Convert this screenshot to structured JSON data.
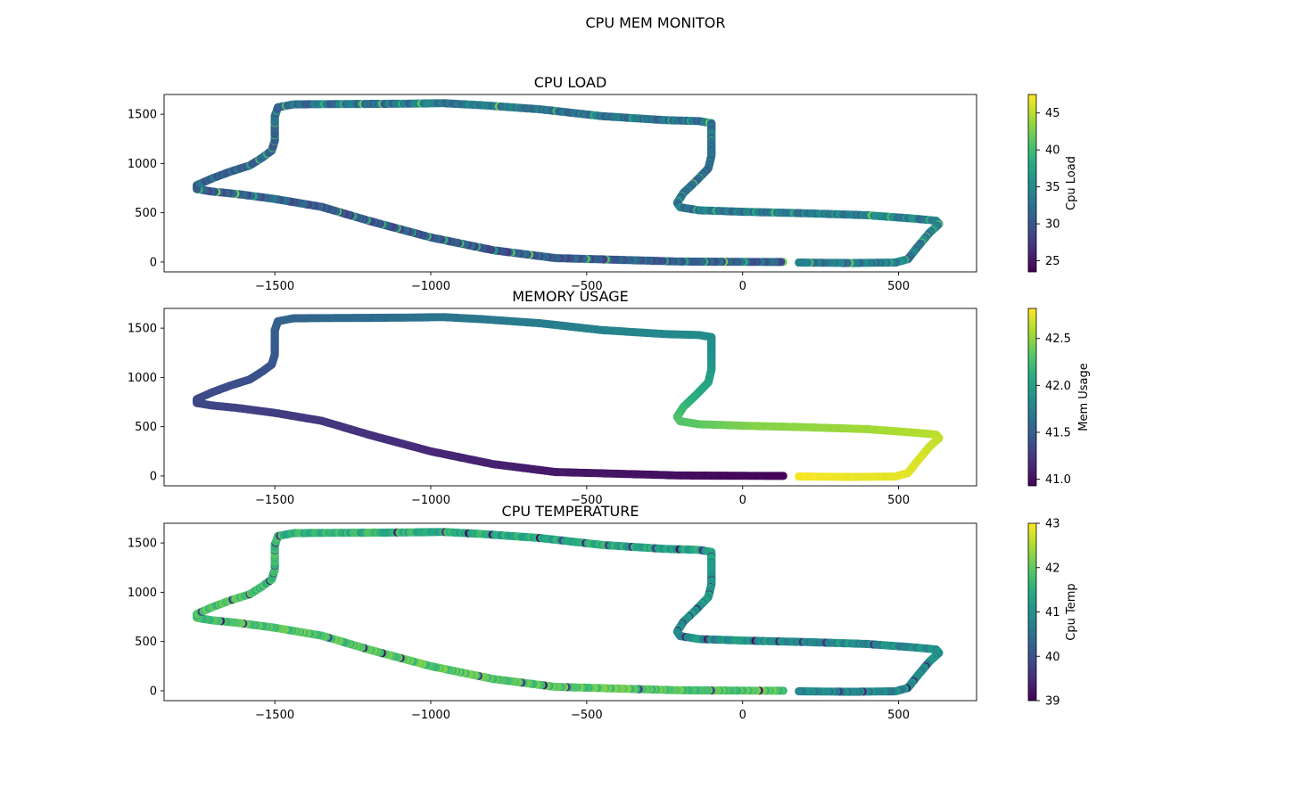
{
  "figure": {
    "suptitle": "CPU MEM MONITOR"
  },
  "colormap": "viridis",
  "chart_data": [
    {
      "type": "scatter",
      "title": "CPU LOAD",
      "xlabel": "",
      "ylabel": "",
      "xlim": [
        -1855,
        750
      ],
      "ylim": [
        -100,
        1700
      ],
      "xticks": [
        -1500,
        -1000,
        -500,
        0,
        500
      ],
      "xtick_labels": [
        "−1500",
        "−1000",
        "−500",
        "0",
        "500"
      ],
      "yticks": [
        0,
        500,
        1000,
        1500
      ],
      "ytick_labels": [
        "0",
        "500",
        "1000",
        "1500"
      ],
      "grid": false,
      "colorbar": {
        "label": "Cpu Load",
        "vmin": 23.5,
        "vmax": 47.5,
        "ticks": [
          25,
          30,
          35,
          40,
          45
        ],
        "tick_labels": [
          "25",
          "30",
          "35",
          "40",
          "45"
        ]
      },
      "color_profile": {
        "mode": "noisy",
        "base": [
          [
            0,
            31
          ],
          [
            0.15,
            30
          ],
          [
            0.3,
            31
          ],
          [
            0.45,
            32
          ],
          [
            0.55,
            33
          ],
          [
            0.7,
            32
          ],
          [
            0.85,
            34
          ],
          [
            1,
            33
          ]
        ],
        "noise": 5,
        "spike_every": 9,
        "spike_value": 40
      },
      "path": [
        [
          130,
          0
        ],
        [
          -200,
          5
        ],
        [
          -600,
          40
        ],
        [
          -800,
          120
        ],
        [
          -1000,
          250
        ],
        [
          -1200,
          420
        ],
        [
          -1350,
          560
        ],
        [
          -1500,
          640
        ],
        [
          -1620,
          690
        ],
        [
          -1700,
          715
        ],
        [
          -1750,
          740
        ],
        [
          -1750,
          780
        ],
        [
          -1700,
          850
        ],
        [
          -1640,
          920
        ],
        [
          -1580,
          980
        ],
        [
          -1540,
          1060
        ],
        [
          -1510,
          1130
        ],
        [
          -1500,
          1230
        ],
        [
          -1500,
          1350
        ],
        [
          -1500,
          1480
        ],
        [
          -1490,
          1570
        ],
        [
          -1440,
          1600
        ],
        [
          -1300,
          1603
        ],
        [
          -1100,
          1606
        ],
        [
          -960,
          1612
        ],
        [
          -830,
          1590
        ],
        [
          -650,
          1550
        ],
        [
          -450,
          1480
        ],
        [
          -250,
          1440
        ],
        [
          -140,
          1430
        ],
        [
          -100,
          1410
        ],
        [
          -100,
          1300
        ],
        [
          -100,
          1080
        ],
        [
          -110,
          950
        ],
        [
          -150,
          820
        ],
        [
          -190,
          700
        ],
        [
          -210,
          600
        ],
        [
          -200,
          555
        ],
        [
          -140,
          525
        ],
        [
          0,
          510
        ],
        [
          200,
          495
        ],
        [
          400,
          475
        ],
        [
          550,
          440
        ],
        [
          620,
          420
        ],
        [
          630,
          385
        ],
        [
          600,
          300
        ],
        [
          560,
          150
        ],
        [
          530,
          30
        ],
        [
          490,
          -5
        ],
        [
          350,
          -10
        ],
        [
          180,
          -5
        ]
      ]
    },
    {
      "type": "scatter",
      "title": "MEMORY USAGE",
      "xlabel": "",
      "ylabel": "",
      "xlim": [
        -1855,
        750
      ],
      "ylim": [
        -100,
        1700
      ],
      "xticks": [
        -1500,
        -1000,
        -500,
        0,
        500
      ],
      "xtick_labels": [
        "−1500",
        "−1000",
        "−500",
        "0",
        "500"
      ],
      "yticks": [
        0,
        500,
        1000,
        1500
      ],
      "ytick_labels": [
        "0",
        "500",
        "1000",
        "1500"
      ],
      "grid": false,
      "colorbar": {
        "label": "Mem Usage",
        "vmin": 40.93,
        "vmax": 42.82,
        "ticks": [
          41.0,
          41.5,
          42.0,
          42.5
        ],
        "tick_labels": [
          "41.0",
          "41.5",
          "42.0",
          "42.5"
        ]
      },
      "color_profile": {
        "mode": "smooth",
        "base": [
          [
            0,
            40.95
          ],
          [
            0.1,
            41.05
          ],
          [
            0.2,
            41.18
          ],
          [
            0.27,
            41.28
          ],
          [
            0.31,
            41.35
          ],
          [
            0.36,
            41.4
          ],
          [
            0.45,
            41.55
          ],
          [
            0.53,
            41.68
          ],
          [
            0.6,
            41.78
          ],
          [
            0.67,
            41.88
          ],
          [
            0.72,
            42.05
          ],
          [
            0.76,
            42.25
          ],
          [
            0.8,
            42.45
          ],
          [
            0.86,
            42.55
          ],
          [
            0.92,
            42.7
          ],
          [
            1,
            42.8
          ]
        ],
        "noise": 0.03
      },
      "path": [
        [
          130,
          0
        ],
        [
          -200,
          5
        ],
        [
          -600,
          40
        ],
        [
          -800,
          120
        ],
        [
          -1000,
          250
        ],
        [
          -1200,
          420
        ],
        [
          -1350,
          560
        ],
        [
          -1500,
          640
        ],
        [
          -1620,
          690
        ],
        [
          -1700,
          715
        ],
        [
          -1750,
          740
        ],
        [
          -1750,
          780
        ],
        [
          -1700,
          850
        ],
        [
          -1640,
          920
        ],
        [
          -1580,
          980
        ],
        [
          -1540,
          1060
        ],
        [
          -1510,
          1130
        ],
        [
          -1500,
          1230
        ],
        [
          -1500,
          1350
        ],
        [
          -1500,
          1480
        ],
        [
          -1490,
          1570
        ],
        [
          -1440,
          1600
        ],
        [
          -1300,
          1603
        ],
        [
          -1100,
          1606
        ],
        [
          -960,
          1612
        ],
        [
          -830,
          1590
        ],
        [
          -650,
          1550
        ],
        [
          -450,
          1480
        ],
        [
          -250,
          1440
        ],
        [
          -140,
          1430
        ],
        [
          -100,
          1410
        ],
        [
          -100,
          1300
        ],
        [
          -100,
          1080
        ],
        [
          -110,
          950
        ],
        [
          -150,
          820
        ],
        [
          -190,
          700
        ],
        [
          -210,
          600
        ],
        [
          -200,
          555
        ],
        [
          -140,
          525
        ],
        [
          0,
          510
        ],
        [
          200,
          495
        ],
        [
          400,
          475
        ],
        [
          550,
          440
        ],
        [
          620,
          420
        ],
        [
          630,
          385
        ],
        [
          600,
          300
        ],
        [
          560,
          150
        ],
        [
          530,
          30
        ],
        [
          490,
          -5
        ],
        [
          350,
          -10
        ],
        [
          180,
          -5
        ]
      ]
    },
    {
      "type": "scatter",
      "title": "CPU TEMPERATURE",
      "xlabel": "",
      "ylabel": "",
      "xlim": [
        -1855,
        750
      ],
      "ylim": [
        -100,
        1700
      ],
      "xticks": [
        -1500,
        -1000,
        -500,
        0,
        500
      ],
      "xtick_labels": [
        "−1500",
        "−1000",
        "−500",
        "0",
        "500"
      ],
      "yticks": [
        0,
        500,
        1000,
        1500
      ],
      "ytick_labels": [
        "0",
        "500",
        "1000",
        "1500"
      ],
      "grid": false,
      "colorbar": {
        "label": "Cpu Temp",
        "vmin": 39,
        "vmax": 43,
        "ticks": [
          39,
          40,
          41,
          42,
          43
        ],
        "tick_labels": [
          "39",
          "40",
          "41",
          "42",
          "43"
        ]
      },
      "color_profile": {
        "mode": "noisy",
        "base": [
          [
            0,
            41.9
          ],
          [
            0.3,
            41.9
          ],
          [
            0.45,
            41.6
          ],
          [
            0.6,
            41.4
          ],
          [
            0.75,
            41.0
          ],
          [
            0.9,
            40.9
          ],
          [
            1,
            40.8
          ]
        ],
        "noise": 0.7,
        "spike_every": 11,
        "spike_value": 39.4
      },
      "path": [
        [
          130,
          0
        ],
        [
          -200,
          5
        ],
        [
          -600,
          40
        ],
        [
          -800,
          120
        ],
        [
          -1000,
          250
        ],
        [
          -1200,
          420
        ],
        [
          -1350,
          560
        ],
        [
          -1500,
          640
        ],
        [
          -1620,
          690
        ],
        [
          -1700,
          715
        ],
        [
          -1750,
          740
        ],
        [
          -1750,
          780
        ],
        [
          -1700,
          850
        ],
        [
          -1640,
          920
        ],
        [
          -1580,
          980
        ],
        [
          -1540,
          1060
        ],
        [
          -1510,
          1130
        ],
        [
          -1500,
          1230
        ],
        [
          -1500,
          1350
        ],
        [
          -1500,
          1480
        ],
        [
          -1490,
          1570
        ],
        [
          -1440,
          1600
        ],
        [
          -1300,
          1603
        ],
        [
          -1100,
          1606
        ],
        [
          -960,
          1612
        ],
        [
          -830,
          1590
        ],
        [
          -650,
          1550
        ],
        [
          -450,
          1480
        ],
        [
          -250,
          1440
        ],
        [
          -140,
          1430
        ],
        [
          -100,
          1410
        ],
        [
          -100,
          1300
        ],
        [
          -100,
          1080
        ],
        [
          -110,
          950
        ],
        [
          -150,
          820
        ],
        [
          -190,
          700
        ],
        [
          -210,
          600
        ],
        [
          -200,
          555
        ],
        [
          -140,
          525
        ],
        [
          0,
          510
        ],
        [
          200,
          495
        ],
        [
          400,
          475
        ],
        [
          550,
          440
        ],
        [
          620,
          420
        ],
        [
          630,
          385
        ],
        [
          600,
          300
        ],
        [
          560,
          150
        ],
        [
          530,
          30
        ],
        [
          490,
          -5
        ],
        [
          350,
          -10
        ],
        [
          180,
          -5
        ]
      ]
    }
  ]
}
